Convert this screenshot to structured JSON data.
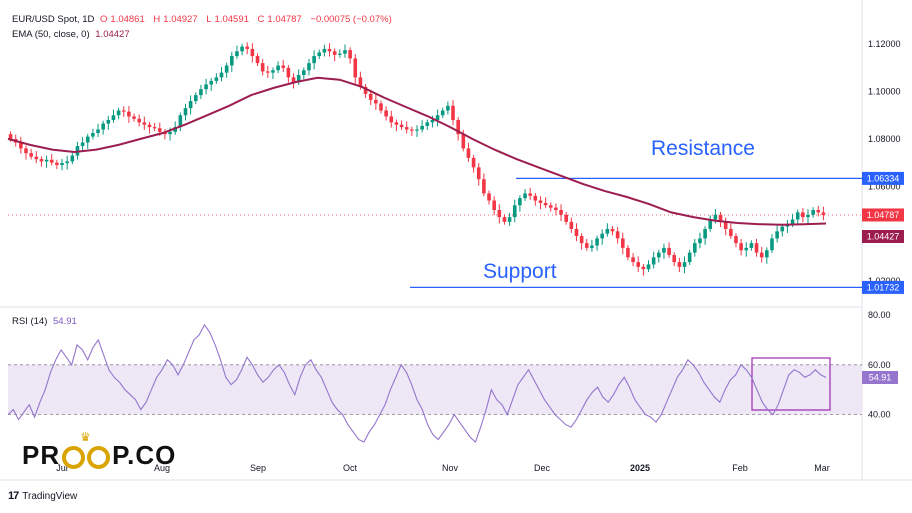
{
  "header": {
    "symbol": "EUR/USD Spot, 1D",
    "open_label": "O",
    "open": "1.04861",
    "high_label": "H",
    "high": "1.04927",
    "low_label": "L",
    "low": "1.04591",
    "close_label": "C",
    "close": "1.04787",
    "change": "−0.00075 (−0.07%)",
    "ema_label": "EMA (50, close, 0)",
    "ema_value": "1.04427"
  },
  "rsi_header": {
    "label": "RSI (14)",
    "value": "54.91"
  },
  "annotations": {
    "resistance": "Resistance",
    "support": "Support"
  },
  "price_badges": {
    "resistance": "1.06334",
    "close": "1.04787",
    "ema": "1.04427",
    "support": "1.01732",
    "rsi": "54.91"
  },
  "branding": {
    "logo_left": "PR",
    "logo_right": "P.CO",
    "platform": "TradingView"
  },
  "colors": {
    "up": "#089981",
    "down": "#f23645",
    "ema": "#9c1d4f",
    "rsi": "#9575cd",
    "levels": "#2962ff",
    "rsi_band": "#ede7f6",
    "close_badge": "#f23645",
    "ema_badge": "#9c1d4f"
  },
  "chart_data": [
    {
      "type": "candlestick",
      "title": "EUR/USD Spot, 1D",
      "x_tick_labels": [
        "Jul",
        "Aug",
        "Sep",
        "Oct",
        "Nov",
        "Dec",
        "2025",
        "Feb",
        "Mar"
      ],
      "y_tick_labels": [
        "1.12000",
        "1.10000",
        "1.08000",
        "1.06000",
        "1.04000",
        "1.02000"
      ],
      "ylim": [
        1.012,
        1.126
      ],
      "levels": {
        "resistance": 1.06334,
        "support": 1.01732
      },
      "close_series": [
        1.08,
        1.0785,
        1.076,
        1.074,
        1.0725,
        1.0715,
        1.0705,
        1.0712,
        1.07,
        1.069,
        1.0698,
        1.0705,
        1.073,
        1.077,
        1.0785,
        1.081,
        1.0825,
        1.084,
        1.0865,
        1.088,
        1.09,
        1.092,
        1.0915,
        1.0895,
        1.0885,
        1.087,
        1.086,
        1.085,
        1.0845,
        1.083,
        1.082,
        1.083,
        1.085,
        1.09,
        1.093,
        1.096,
        1.0985,
        1.101,
        1.103,
        1.1045,
        1.106,
        1.108,
        1.111,
        1.115,
        1.117,
        1.119,
        1.118,
        1.115,
        1.112,
        1.1085,
        1.108,
        1.109,
        1.111,
        1.11,
        1.106,
        1.104,
        1.107,
        1.109,
        1.112,
        1.115,
        1.1165,
        1.118,
        1.117,
        1.1155,
        1.116,
        1.1175,
        1.114,
        1.106,
        1.102,
        1.099,
        1.0965,
        1.095,
        1.092,
        1.0895,
        1.087,
        1.086,
        1.085,
        1.084,
        1.0835,
        1.084,
        1.0855,
        1.087,
        1.088,
        1.09,
        1.092,
        1.094,
        1.088,
        1.082,
        1.076,
        1.072,
        1.068,
        1.063,
        1.057,
        1.054,
        1.05,
        1.047,
        1.045,
        1.047,
        1.052,
        1.055,
        1.057,
        1.056,
        1.054,
        1.053,
        1.052,
        1.051,
        1.05,
        1.048,
        1.045,
        1.042,
        1.039,
        1.036,
        1.034,
        1.035,
        1.038,
        1.04,
        1.042,
        1.041,
        1.038,
        1.034,
        1.03,
        1.028,
        1.026,
        1.025,
        1.027,
        1.03,
        1.032,
        1.034,
        1.031,
        1.028,
        1.026,
        1.028,
        1.032,
        1.036,
        1.038,
        1.042,
        1.046,
        1.048,
        1.045,
        1.042,
        1.039,
        1.036,
        1.033,
        1.034,
        1.036,
        1.032,
        1.03,
        1.033,
        1.038,
        1.041,
        1.043,
        1.044,
        1.046,
        1.049,
        1.047,
        1.048,
        1.05,
        1.049,
        1.0479
      ],
      "ema50_series": [
        1.08,
        1.0775,
        1.0755,
        1.0745,
        1.0755,
        1.0775,
        1.08,
        1.0825,
        1.086,
        1.09,
        1.094,
        1.0985,
        1.1015,
        1.104,
        1.1058,
        1.105,
        1.102,
        1.0975,
        1.0935,
        1.0895,
        1.085,
        1.08,
        1.0755,
        1.0715,
        1.068,
        1.0645,
        1.061,
        1.058,
        1.0555,
        1.0525,
        1.049,
        1.047,
        1.0455,
        1.0445,
        1.044,
        1.0438,
        1.044,
        1.0443
      ]
    },
    {
      "type": "line",
      "title": "RSI (14)",
      "y_tick_labels": [
        "80.00",
        "60.00",
        "40.00"
      ],
      "ylim": [
        25,
        82
      ],
      "band": [
        40,
        60
      ],
      "last_value": 54.91,
      "values": [
        40,
        42,
        38,
        41,
        44,
        39,
        45,
        50,
        57,
        62,
        66,
        63,
        60,
        68,
        66,
        62,
        67,
        70,
        64,
        58,
        55,
        53,
        50,
        48,
        46,
        42,
        45,
        50,
        55,
        58,
        62,
        60,
        56,
        60,
        65,
        70,
        72,
        76,
        73,
        68,
        62,
        55,
        52,
        54,
        58,
        63,
        60,
        56,
        53,
        55,
        58,
        60,
        57,
        52,
        48,
        55,
        60,
        62,
        58,
        55,
        50,
        45,
        42,
        40,
        36,
        33,
        30,
        29,
        33,
        36,
        40,
        44,
        50,
        55,
        60,
        57,
        52,
        46,
        42,
        36,
        32,
        30,
        33,
        36,
        40,
        37,
        34,
        31,
        29,
        35,
        42,
        50,
        46,
        44,
        40,
        46,
        52,
        55,
        58,
        54,
        50,
        46,
        43,
        40,
        38,
        36,
        35,
        38,
        42,
        46,
        49,
        51,
        47,
        45,
        48,
        52,
        55,
        51,
        46,
        43,
        40,
        39,
        37,
        40,
        45,
        50,
        55,
        58,
        62,
        60,
        57,
        53,
        50,
        47,
        45,
        50,
        54,
        56,
        60,
        58,
        55,
        50,
        45,
        42,
        40,
        44,
        50,
        56,
        58,
        57,
        55,
        56,
        58,
        56,
        54.91
      ]
    }
  ]
}
